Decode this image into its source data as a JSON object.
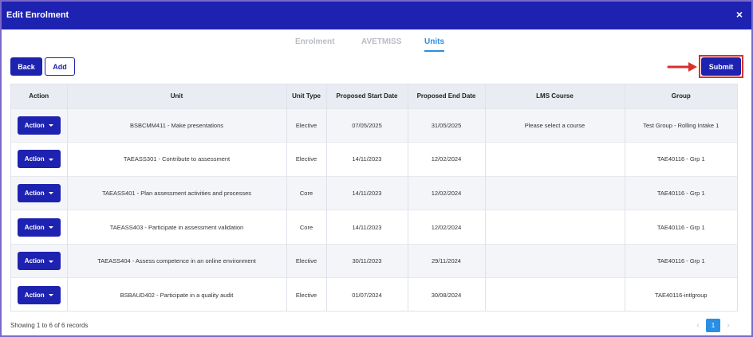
{
  "header": {
    "title": "Edit Enrolment",
    "close_icon": "×"
  },
  "tabs": [
    {
      "label": "Enrolment",
      "active": false
    },
    {
      "label": "AVETMISS",
      "active": false
    },
    {
      "label": "Units",
      "active": true
    }
  ],
  "toolbar": {
    "back_label": "Back",
    "add_label": "Add",
    "submit_label": "Submit"
  },
  "colors": {
    "primary": "#1e22b0",
    "accent": "#2a8fe3",
    "highlight": "#d9302c"
  },
  "table": {
    "columns": [
      "Action",
      "Unit",
      "Unit Type",
      "Proposed Start Date",
      "Proposed End Date",
      "LMS Course",
      "Group"
    ],
    "rows": [
      {
        "action": "Action",
        "unit": "BSBCMM411 - Make presentations",
        "type": "Elective",
        "start": "07/05/2025",
        "end": "31/05/2025",
        "lms": "Please select a course",
        "group": "Test Group - Rolling Intake 1"
      },
      {
        "action": "Action",
        "unit": "TAEASS301 - Contribute to assessment",
        "type": "Elective",
        "start": "14/11/2023",
        "end": "12/02/2024",
        "lms": "",
        "group": "TAE40116 - Grp 1"
      },
      {
        "action": "Action",
        "unit": "TAEASS401 - Plan assessment activities and processes",
        "type": "Core",
        "start": "14/11/2023",
        "end": "12/02/2024",
        "lms": "",
        "group": "TAE40116 - Grp 1"
      },
      {
        "action": "Action",
        "unit": "TAEASS403 - Participate in assessment validation",
        "type": "Core",
        "start": "14/11/2023",
        "end": "12/02/2024",
        "lms": "",
        "group": "TAE40116 - Grp 1"
      },
      {
        "action": "Action",
        "unit": "TAEASS404 - Assess competence in an online environment",
        "type": "Elective",
        "start": "30/11/2023",
        "end": "29/11/2024",
        "lms": "",
        "group": "TAE40116 - Grp 1"
      },
      {
        "action": "Action",
        "unit": "BSBAUD402 - Participate in a quality audit",
        "type": "Elective",
        "start": "01/07/2024",
        "end": "30/08/2024",
        "lms": "",
        "group": "TAE40116-intlgroup"
      }
    ]
  },
  "footer": {
    "records_info": "Showing 1 to 6 of 6 records",
    "current_page": "1",
    "prev_icon": "‹",
    "next_icon": "›"
  }
}
